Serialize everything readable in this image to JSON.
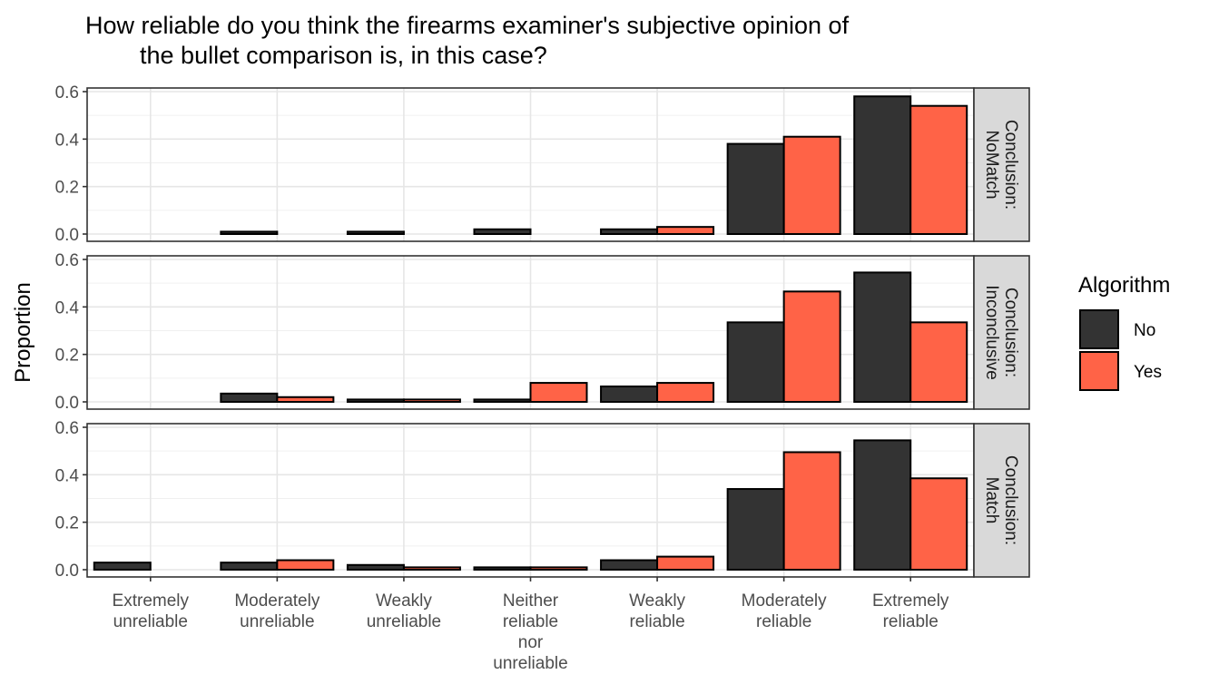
{
  "chart_data": {
    "type": "bar",
    "title": "How reliable do you think the firearms examiner's subjective opinion of\n        the bullet comparison is, in this case?",
    "xlabel": "",
    "ylabel": "Proportion",
    "categories": [
      "Extremely\nunreliable",
      "Moderately\nunreliable",
      "Weakly\nunreliable",
      "Neither\nreliable\nnor\nunreliable",
      "Weakly\nreliable",
      "Moderately\nreliable",
      "Extremely\nreliable"
    ],
    "yticks": [
      "0.0",
      "0.2",
      "0.4",
      "0.6"
    ],
    "ylim": [
      0,
      0.6
    ],
    "grid": true,
    "legend": {
      "title": "Algorithm",
      "position": "right",
      "entries": [
        "No",
        "Yes"
      ]
    },
    "colors": {
      "No": "#333333",
      "Yes": "#FF6347"
    },
    "facets": [
      {
        "label": "Conclusion:\nNoMatch",
        "series": [
          {
            "name": "No",
            "values": [
              null,
              0.01,
              0.01,
              0.02,
              0.02,
              0.38,
              0.58
            ]
          },
          {
            "name": "Yes",
            "values": [
              null,
              null,
              null,
              null,
              0.03,
              0.41,
              0.54
            ]
          }
        ]
      },
      {
        "label": "Conclusion:\nInconclusive",
        "series": [
          {
            "name": "No",
            "values": [
              null,
              0.035,
              0.01,
              0.01,
              0.065,
              0.335,
              0.545
            ]
          },
          {
            "name": "Yes",
            "values": [
              null,
              0.02,
              0.01,
              0.08,
              0.08,
              0.465,
              0.335
            ]
          }
        ]
      },
      {
        "label": "Conclusion:\nMatch",
        "series": [
          {
            "name": "No",
            "values": [
              0.03,
              0.03,
              0.02,
              0.01,
              0.04,
              0.34,
              0.545
            ]
          },
          {
            "name": "Yes",
            "values": [
              null,
              0.04,
              0.01,
              0.01,
              0.055,
              0.495,
              0.385
            ]
          }
        ]
      }
    ]
  }
}
